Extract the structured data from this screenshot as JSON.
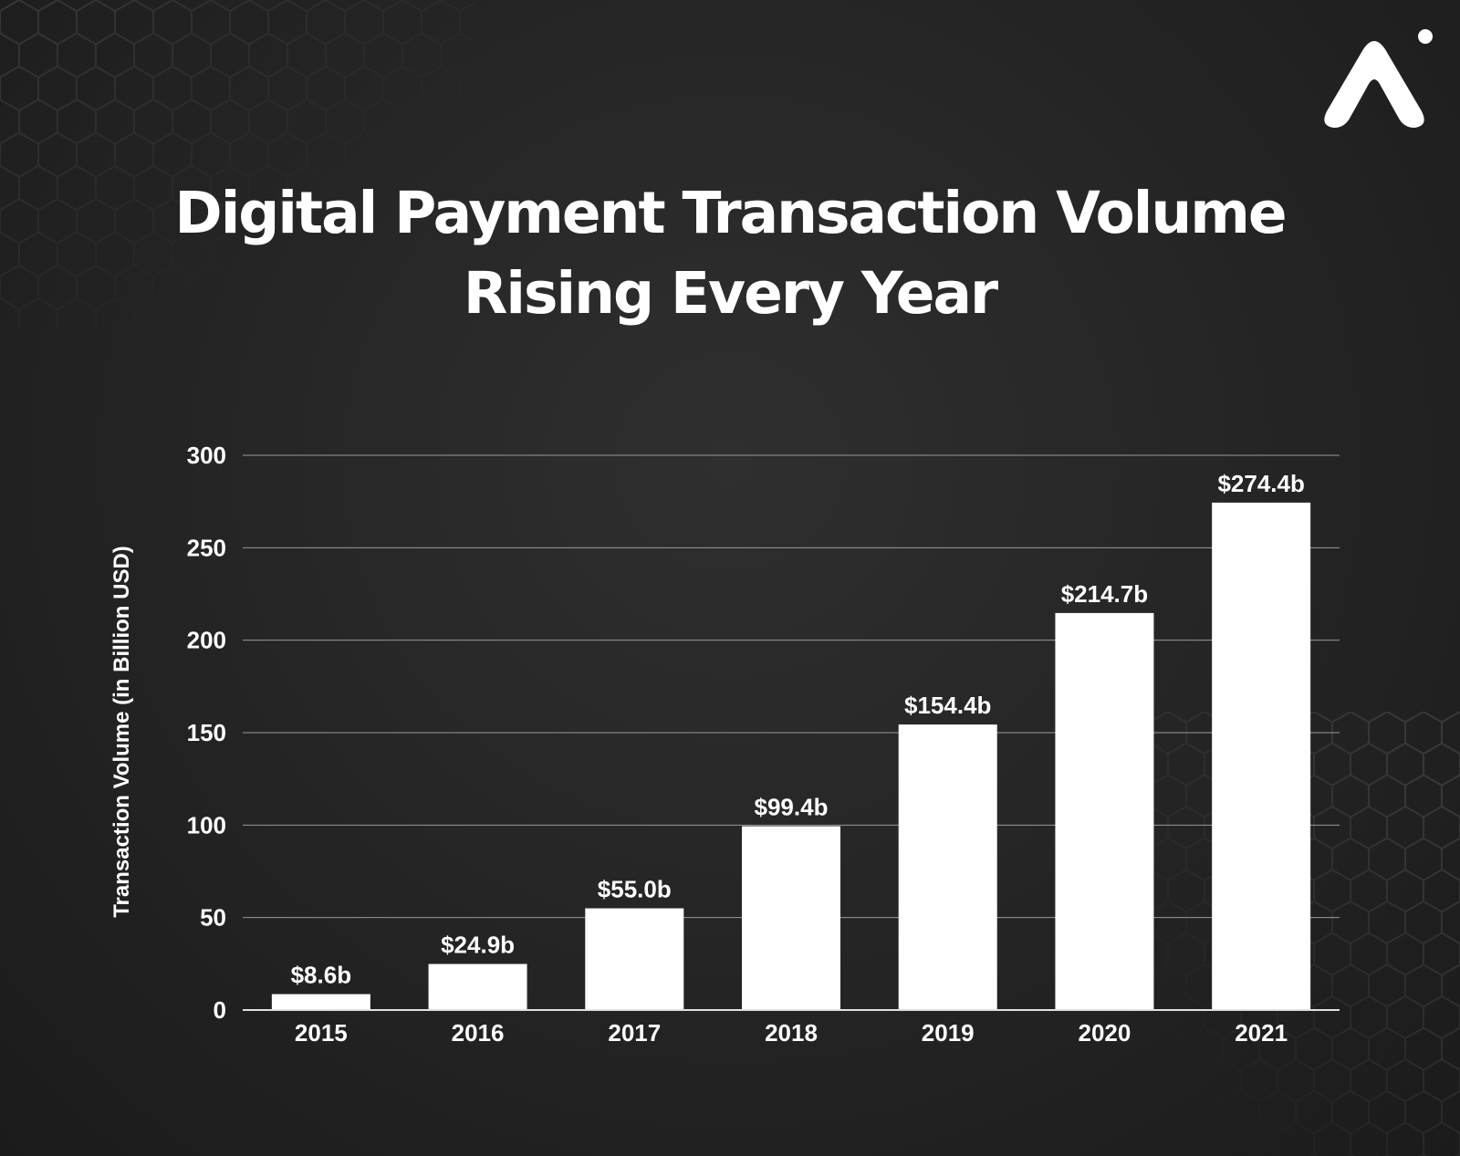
{
  "title_lines": [
    "Digital Payment Transaction Volume",
    "Rising Every Year"
  ],
  "colors": {
    "background": "#242424",
    "bar": "#ffffff",
    "text": "#ffffff",
    "grid": "#9a9a9a"
  },
  "logo": {
    "icon": "brand-a-logo-icon"
  },
  "chart_data": {
    "type": "bar",
    "title": "Digital Payment Transaction Volume Rising Every Year",
    "xlabel": "",
    "ylabel": "Transaction Volume (in Billion USD)",
    "categories": [
      "2015",
      "2016",
      "2017",
      "2018",
      "2019",
      "2020",
      "2021"
    ],
    "values": [
      8.6,
      24.9,
      55.0,
      99.4,
      154.4,
      214.7,
      274.4
    ],
    "data_labels": [
      "$8.6b",
      "$24.9b",
      "$55.0b",
      "$99.4b",
      "$154.4b",
      "$214.7b",
      "$274.4b"
    ],
    "ylim": [
      0,
      300
    ],
    "yticks": [
      0,
      50,
      100,
      150,
      200,
      250,
      300
    ],
    "ytick_labels": [
      "0",
      "50",
      "100",
      "150",
      "200",
      "250",
      "300"
    ],
    "grid": true,
    "legend": "none"
  }
}
